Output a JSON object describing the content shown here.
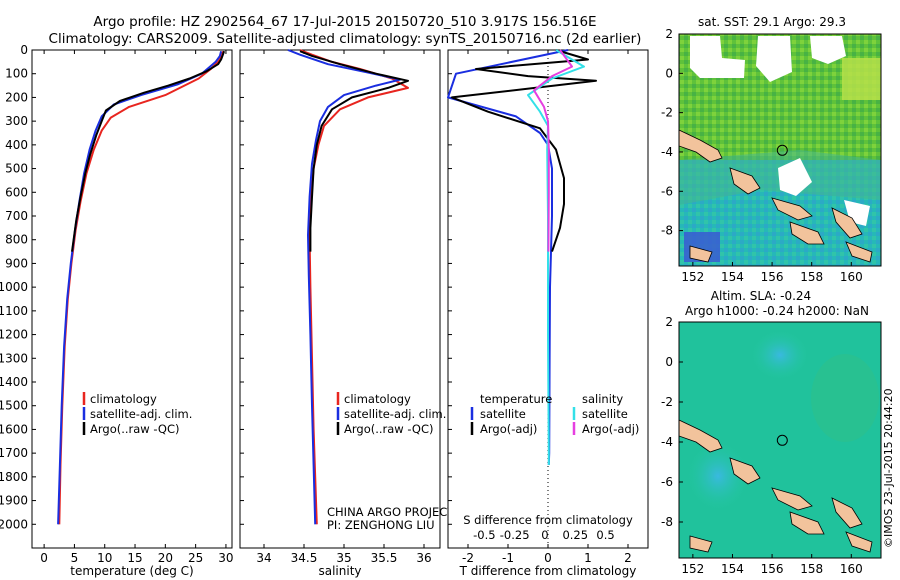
{
  "header": {
    "title1": "Argo profile: HZ 2902564_67 17-Jul-2015 20150720_510 3.917S 156.516E",
    "title2": "Climatology: CARS2009. Satellite-adjusted climatology: synTS_20150716.nc (2d earlier)"
  },
  "timestamp": "©IMOS 23-Jul-2015 20:44:20",
  "colors": {
    "clim": "#e8251f",
    "sat": "#1a2ee0",
    "argo": "#000000",
    "sal_sat": "#33e0e8",
    "sal_argo": "#e63fe0"
  },
  "chart_data": [
    {
      "id": "temperature",
      "type": "line",
      "xlabel": "temperature (deg C)",
      "ylabel": "",
      "xlim": [
        -2,
        31
      ],
      "ylim": [
        2100,
        0
      ],
      "xticks": [
        "0",
        "5",
        "10",
        "15",
        "20",
        "25",
        "30"
      ],
      "yticks": [
        "0",
        "100",
        "200",
        "300",
        "400",
        "500",
        "600",
        "700",
        "800",
        "900",
        "1000",
        "1100",
        "1200",
        "1300",
        "1400",
        "1500",
        "1600",
        "1700",
        "1800",
        "1900",
        "2000"
      ],
      "legend": [
        "climatology",
        "satellite-adj. clim.",
        "Argo(..raw -QC)"
      ],
      "series": [
        {
          "name": "climatology",
          "color": "#e8251f",
          "points": [
            [
              29.5,
              5
            ],
            [
              29.3,
              25
            ],
            [
              28.7,
              50
            ],
            [
              27.5,
              80
            ],
            [
              25.5,
              120
            ],
            [
              20,
              190
            ],
            [
              14,
              240
            ],
            [
              11,
              285
            ],
            [
              9.5,
              340
            ],
            [
              8.2,
              420
            ],
            [
              7,
              520
            ],
            [
              6,
              640
            ],
            [
              5.2,
              760
            ],
            [
              4.5,
              900
            ],
            [
              3.9,
              1050
            ],
            [
              3.4,
              1250
            ],
            [
              3,
              1500
            ],
            [
              2.7,
              1750
            ],
            [
              2.5,
              2000
            ]
          ]
        },
        {
          "name": "satellite-adj. clim.",
          "color": "#1a2ee0",
          "points": [
            [
              29.2,
              5
            ],
            [
              29,
              25
            ],
            [
              28.3,
              50
            ],
            [
              26,
              100
            ],
            [
              22,
              145
            ],
            [
              16,
              190
            ],
            [
              11.5,
              230
            ],
            [
              9.5,
              280
            ],
            [
              8.5,
              340
            ],
            [
              7.5,
              420
            ],
            [
              6.6,
              520
            ],
            [
              5.8,
              640
            ],
            [
              5.1,
              760
            ],
            [
              4.4,
              900
            ],
            [
              3.8,
              1050
            ],
            [
              3.3,
              1250
            ],
            [
              2.9,
              1500
            ],
            [
              2.6,
              1750
            ],
            [
              2.3,
              2000
            ]
          ]
        },
        {
          "name": "Argo(..raw -QC)",
          "color": "#000000",
          "points": [
            [
              29.7,
              5
            ],
            [
              29.5,
              20
            ],
            [
              29.2,
              40
            ],
            [
              28.7,
              60
            ],
            [
              26.8,
              90
            ],
            [
              24,
              120
            ],
            [
              20.5,
              150
            ],
            [
              16.5,
              180
            ],
            [
              12.5,
              215
            ],
            [
              10.2,
              255
            ],
            [
              9.5,
              300
            ],
            [
              8.6,
              360
            ],
            [
              7.6,
              440
            ],
            [
              6.8,
              520
            ],
            [
              6,
              620
            ],
            [
              5.3,
              720
            ],
            [
              4.6,
              850
            ]
          ]
        }
      ]
    },
    {
      "id": "salinity",
      "type": "line",
      "xlabel": "salinity",
      "ylabel": "",
      "xlim": [
        33.7,
        36.2
      ],
      "ylim": [
        2100,
        0
      ],
      "xticks": [
        "34",
        "34.5",
        "35",
        "35.5",
        "36"
      ],
      "legend": [
        "climatology",
        "satellite-adj. clim.",
        "Argo(..raw -QC)"
      ],
      "annotations": [
        "CHINA ARGO PROJECT",
        "PI: ZENGHONG LIU"
      ],
      "series": [
        {
          "name": "climatology",
          "color": "#e8251f",
          "points": [
            [
              34.45,
              0
            ],
            [
              34.6,
              20
            ],
            [
              34.85,
              50
            ],
            [
              35.2,
              80
            ],
            [
              35.6,
              120
            ],
            [
              35.8,
              160
            ],
            [
              35.3,
              200
            ],
            [
              34.95,
              250
            ],
            [
              34.75,
              320
            ],
            [
              34.68,
              400
            ],
            [
              34.62,
              500
            ],
            [
              34.58,
              650
            ],
            [
              34.57,
              800
            ],
            [
              34.58,
              1000
            ],
            [
              34.6,
              1300
            ],
            [
              34.62,
              1600
            ],
            [
              34.64,
              1800
            ],
            [
              34.66,
              2000
            ]
          ]
        },
        {
          "name": "satellite-adj. clim.",
          "color": "#1a2ee0",
          "points": [
            [
              34.3,
              0
            ],
            [
              34.45,
              20
            ],
            [
              34.8,
              60
            ],
            [
              35.3,
              95
            ],
            [
              35.7,
              125
            ],
            [
              35.4,
              150
            ],
            [
              35.0,
              190
            ],
            [
              34.8,
              240
            ],
            [
              34.7,
              300
            ],
            [
              34.65,
              380
            ],
            [
              34.6,
              480
            ],
            [
              34.57,
              620
            ],
            [
              34.55,
              780
            ],
            [
              34.56,
              950
            ],
            [
              34.58,
              1200
            ],
            [
              34.6,
              1500
            ],
            [
              34.62,
              1750
            ],
            [
              34.64,
              2000
            ]
          ]
        },
        {
          "name": "Argo(..raw -QC)",
          "color": "#000000",
          "points": [
            [
              34.45,
              5
            ],
            [
              34.6,
              25
            ],
            [
              34.95,
              60
            ],
            [
              35.4,
              100
            ],
            [
              35.8,
              130
            ],
            [
              35.55,
              160
            ],
            [
              35.1,
              200
            ],
            [
              34.85,
              250
            ],
            [
              34.72,
              320
            ],
            [
              34.66,
              400
            ],
            [
              34.62,
              500
            ],
            [
              34.6,
              620
            ],
            [
              34.58,
              750
            ],
            [
              34.58,
              850
            ]
          ]
        }
      ]
    },
    {
      "id": "difference",
      "type": "line",
      "xlabel": "T difference from climatology",
      "x2label": "S difference from climatology",
      "xlim": [
        -2.5,
        2.5
      ],
      "x2lim": [
        -0.8,
        0.85
      ],
      "ylim": [
        2100,
        0
      ],
      "xticks": [
        "-2",
        "-1",
        "0",
        "1",
        "2"
      ],
      "x2ticks": [
        "-0.5",
        "-0.25",
        "0",
        "0.25",
        "0.5"
      ],
      "legend_headers": [
        "temperature",
        "salinity"
      ],
      "legend": [
        "satellite",
        "Argo(-adj)",
        "satellite",
        "Argo(-adj)"
      ],
      "series": [
        {
          "name": "temperature satellite",
          "color": "#1a2ee0",
          "points": [
            [
              0.5,
              0
            ],
            [
              -2.3,
              100
            ],
            [
              -2.5,
              200
            ],
            [
              -0.8,
              280
            ],
            [
              -0.2,
              350
            ],
            [
              0,
              400
            ],
            [
              0.1,
              500
            ],
            [
              0.1,
              700
            ],
            [
              0.05,
              1000
            ],
            [
              0.04,
              1300
            ],
            [
              0.03,
              1700
            ],
            [
              0.02,
              1750
            ]
          ]
        },
        {
          "name": "temperature Argo(-adj)",
          "color": "#000000",
          "points": [
            [
              0.2,
              0
            ],
            [
              1,
              40
            ],
            [
              -1.8,
              80
            ],
            [
              -0.5,
              110
            ],
            [
              1.2,
              130
            ],
            [
              -2.4,
              200
            ],
            [
              -1.5,
              260
            ],
            [
              -0.2,
              330
            ],
            [
              0.2,
              420
            ],
            [
              0.4,
              540
            ],
            [
              0.4,
              650
            ],
            [
              0.3,
              750
            ],
            [
              0.1,
              850
            ]
          ]
        },
        {
          "name": "salinity satellite",
          "color": "#33e0e8",
          "points": [
            [
              0.2,
              0
            ],
            [
              0.9,
              70
            ],
            [
              0.1,
              120
            ],
            [
              -0.5,
              190
            ],
            [
              -0.2,
              260
            ],
            [
              0,
              320
            ],
            [
              -0.02,
              420
            ],
            [
              0,
              700
            ],
            [
              0,
              1200
            ],
            [
              0.02,
              1700
            ],
            [
              0.02,
              1750
            ]
          ]
        },
        {
          "name": "salinity Argo(-adj)",
          "color": "#e63fe0",
          "points": [
            [
              0.3,
              0
            ],
            [
              0.6,
              70
            ],
            [
              0.1,
              110
            ],
            [
              -0.35,
              170
            ],
            [
              -0.1,
              240
            ],
            [
              0,
              300
            ],
            [
              0.02,
              420
            ],
            [
              0.02,
              600
            ],
            [
              0.01,
              850
            ]
          ]
        }
      ]
    },
    {
      "id": "sst-map",
      "type": "heatmap",
      "title": "sat. SST: 29.1  Argo: 29.3",
      "xlim": [
        151.3,
        161.5
      ],
      "ylim": [
        -9.8,
        2
      ],
      "xticks": [
        "152",
        "154",
        "156",
        "158",
        "160"
      ],
      "yticks": [
        "2",
        "0",
        "-2",
        "-4",
        "-6",
        "-8"
      ],
      "marker": {
        "lon": 156.516,
        "lat": -3.917
      }
    },
    {
      "id": "sla-map",
      "type": "heatmap",
      "title": "Altim. SLA: -0.24",
      "subtitle": "Argo h1000: -0.24  h2000: NaN",
      "xlim": [
        151.3,
        161.5
      ],
      "ylim": [
        -9.8,
        2
      ],
      "xticks": [
        "152",
        "154",
        "156",
        "158",
        "160"
      ],
      "yticks": [
        "2",
        "0",
        "-2",
        "-4",
        "-6",
        "-8"
      ],
      "marker": {
        "lon": 156.516,
        "lat": -3.917
      }
    }
  ]
}
